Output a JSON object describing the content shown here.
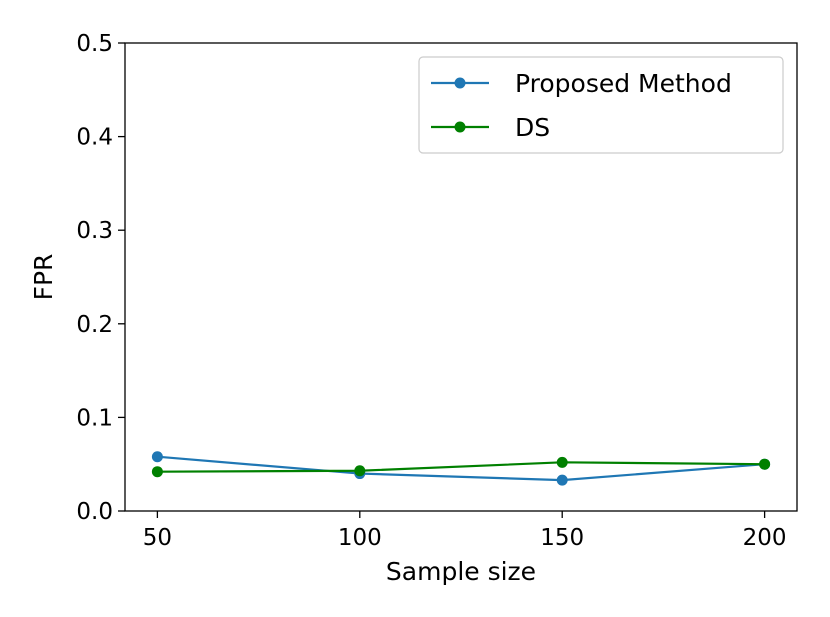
{
  "chart_data": {
    "type": "line",
    "title": "",
    "xlabel": "Sample size",
    "ylabel": "FPR",
    "x": [
      50,
      100,
      150,
      200
    ],
    "xlim": [
      42,
      208
    ],
    "ylim": [
      0,
      0.5
    ],
    "xticks": [
      50,
      100,
      150,
      200
    ],
    "yticks": [
      0.0,
      0.1,
      0.2,
      0.3,
      0.4,
      0.5
    ],
    "ytick_labels": [
      "0.0",
      "0.1",
      "0.2",
      "0.3",
      "0.4",
      "0.5"
    ],
    "grid": false,
    "legend_position": "top-right",
    "series": [
      {
        "name": "Proposed Method",
        "color": "#1f77b4",
        "values": [
          0.058,
          0.04,
          0.033,
          0.05
        ]
      },
      {
        "name": "DS",
        "color": "#008000",
        "values": [
          0.042,
          0.043,
          0.052,
          0.05
        ]
      }
    ]
  }
}
